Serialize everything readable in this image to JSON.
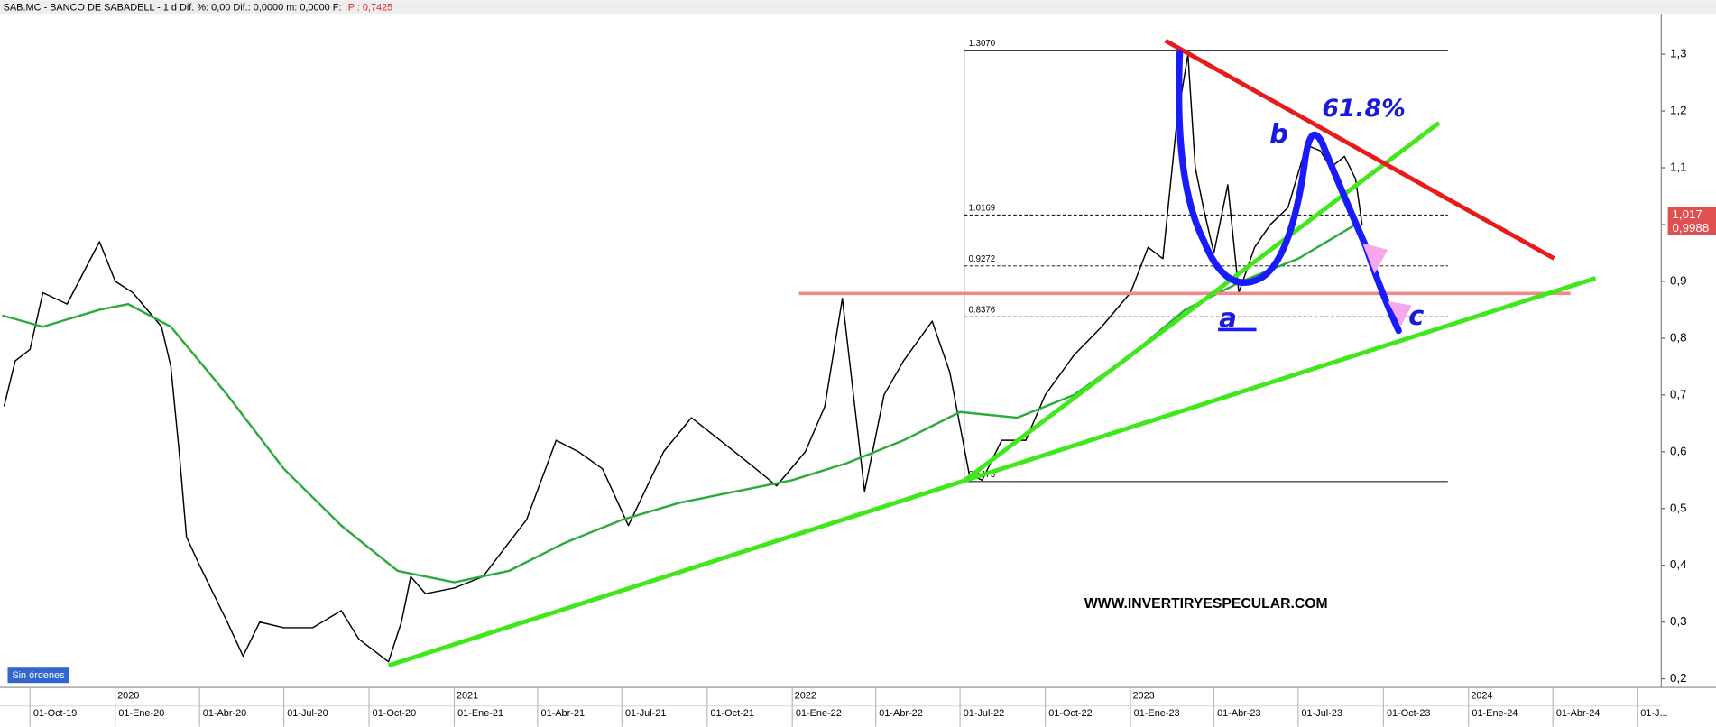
{
  "chart_data": {
    "type": "line",
    "title": "SAB.MC - BANCO DE SABADELL -  1 d  Dif. %: 0,00  Dif.: 0,0000  m: 0,0000  F:",
    "price_note": "P : 0,7425",
    "series": [
      {
        "color": "#000000",
        "x": [
          "2019-09-03",
          "2019-09-15",
          "2019-10-01",
          "2019-10-15",
          "2019-11-10",
          "2019-12-15",
          "2020-01-01",
          "2020-01-20",
          "2020-02-20",
          "2020-03-01",
          "2020-03-10",
          "2020-03-18",
          "2020-04-01",
          "2020-05-01",
          "2020-05-18",
          "2020-06-05",
          "2020-07-01",
          "2020-08-01",
          "2020-09-01",
          "2020-09-20",
          "2020-10-22",
          "2020-11-05",
          "2020-11-15",
          "2020-12-01",
          "2021-01-01",
          "2021-02-01",
          "2021-03-01",
          "2021-03-20",
          "2021-04-21",
          "2021-05-15",
          "2021-06-10",
          "2021-07-08",
          "2021-08-15",
          "2021-09-14",
          "2021-10-15",
          "2021-11-15",
          "2021-12-15",
          "2022-01-15",
          "2022-02-05",
          "2022-02-24",
          "2022-03-20",
          "2022-04-10",
          "2022-05-01",
          "2022-06-01",
          "2022-06-20",
          "2022-07-11",
          "2022-07-25",
          "2022-08-15",
          "2022-09-10",
          "2022-10-01",
          "2022-11-01",
          "2022-12-01",
          "2023-01-01",
          "2023-01-20",
          "2023-02-05",
          "2023-02-20",
          "2023-03-04",
          "2023-03-12",
          "2023-03-22",
          "2023-04-01",
          "2023-04-16",
          "2023-04-28",
          "2023-05-15",
          "2023-06-01",
          "2023-06-20",
          "2023-07-10",
          "2023-07-25",
          "2023-08-05",
          "2023-08-20",
          "2023-09-01",
          "2023-09-08"
        ],
        "values": [
          0.68,
          0.76,
          0.78,
          0.88,
          0.86,
          0.97,
          0.9,
          0.88,
          0.82,
          0.75,
          0.6,
          0.45,
          0.4,
          0.3,
          0.24,
          0.3,
          0.29,
          0.29,
          0.32,
          0.27,
          0.23,
          0.3,
          0.38,
          0.35,
          0.36,
          0.38,
          0.44,
          0.48,
          0.62,
          0.6,
          0.57,
          0.47,
          0.6,
          0.66,
          0.62,
          0.58,
          0.54,
          0.6,
          0.68,
          0.87,
          0.53,
          0.7,
          0.76,
          0.83,
          0.74,
          0.56,
          0.55,
          0.62,
          0.62,
          0.7,
          0.77,
          0.82,
          0.88,
          0.96,
          0.94,
          1.18,
          1.3,
          1.1,
          1.02,
          0.95,
          1.07,
          0.88,
          0.96,
          1.0,
          1.03,
          1.14,
          1.13,
          1.1,
          1.12,
          1.08,
          1.0
        ]
      },
      {
        "color": "#2eaa3c",
        "x": [
          "2019-09-01",
          "2019-10-15",
          "2019-12-15",
          "2020-01-15",
          "2020-03-01",
          "2020-05-01",
          "2020-07-01",
          "2020-09-01",
          "2020-11-01",
          "2021-01-01",
          "2021-03-01",
          "2021-05-01",
          "2021-07-01",
          "2021-09-01",
          "2021-11-01",
          "2022-01-01",
          "2022-03-01",
          "2022-05-01",
          "2022-07-01",
          "2022-09-01",
          "2022-11-01",
          "2023-01-01",
          "2023-03-01",
          "2023-05-01",
          "2023-07-01",
          "2023-09-01"
        ],
        "values": [
          0.84,
          0.82,
          0.85,
          0.86,
          0.82,
          0.7,
          0.57,
          0.47,
          0.39,
          0.37,
          0.39,
          0.44,
          0.48,
          0.51,
          0.53,
          0.55,
          0.58,
          0.62,
          0.67,
          0.66,
          0.7,
          0.77,
          0.85,
          0.9,
          0.94,
          1.0
        ]
      }
    ],
    "xlim": [
      "2019-09-01",
      "2024-07-27"
    ],
    "xticks": [
      {
        "value": "2019-10-01",
        "label": "01-Oct-19"
      },
      {
        "value": "2020-01-01",
        "label": "01-Ene-20"
      },
      {
        "value": "2020-04-01",
        "label": "01-Abr-20"
      },
      {
        "value": "2020-07-01",
        "label": "01-Jul-20"
      },
      {
        "value": "2020-10-01",
        "label": "01-Oct-20"
      },
      {
        "value": "2021-01-01",
        "label": "01-Ene-21"
      },
      {
        "value": "2021-04-01",
        "label": "01-Abr-21"
      },
      {
        "value": "2021-07-01",
        "label": "01-Jul-21"
      },
      {
        "value": "2021-10-01",
        "label": "01-Oct-21"
      },
      {
        "value": "2022-01-01",
        "label": "01-Ene-22"
      },
      {
        "value": "2022-04-01",
        "label": "01-Abr-22"
      },
      {
        "value": "2022-07-01",
        "label": "01-Jul-22"
      },
      {
        "value": "2022-10-01",
        "label": "01-Oct-22"
      },
      {
        "value": "2023-01-01",
        "label": "01-Ene-23"
      },
      {
        "value": "2023-04-01",
        "label": "01-Abr-23"
      },
      {
        "value": "2023-07-01",
        "label": "01-Jul-23"
      },
      {
        "value": "2023-10-01",
        "label": "01-Oct-23"
      },
      {
        "value": "2024-01-01",
        "label": "01-Ene-24"
      },
      {
        "value": "2024-04-01",
        "label": "01-Abr-24"
      },
      {
        "value": "2024-07-01",
        "label": "01-J..."
      }
    ],
    "year_ticks": [
      {
        "value": "2020-01-01",
        "label": "2020"
      },
      {
        "value": "2021-01-01",
        "label": "2021"
      },
      {
        "value": "2022-01-01",
        "label": "2022"
      },
      {
        "value": "2023-01-01",
        "label": "2023"
      },
      {
        "value": "2024-01-01",
        "label": "2024"
      }
    ],
    "ylim": [
      0.185,
      1.37
    ],
    "yticks": [
      {
        "value": 0.2,
        "label": "0,2"
      },
      {
        "value": 0.3,
        "label": "0,3"
      },
      {
        "value": 0.4,
        "label": "0,4"
      },
      {
        "value": 0.5,
        "label": "0,5"
      },
      {
        "value": 0.6,
        "label": "0,6"
      },
      {
        "value": 0.7,
        "label": "0,7"
      },
      {
        "value": 0.8,
        "label": "0,8"
      },
      {
        "value": 0.9,
        "label": "0,9"
      },
      {
        "value": 1.0,
        "label": "1"
      },
      {
        "value": 1.1,
        "label": "1,1"
      },
      {
        "value": 1.2,
        "label": "1,2"
      },
      {
        "value": 1.3,
        "label": "1,3"
      }
    ],
    "fib_levels": [
      {
        "value": 1.307,
        "label": "1.3070"
      },
      {
        "value": 1.0169,
        "label": "1.0169"
      },
      {
        "value": 0.9272,
        "label": "0.9272"
      },
      {
        "value": 0.8376,
        "label": "0.8376"
      },
      {
        "value": 0.5475,
        "label": "0.5475"
      }
    ],
    "price_tags": [
      {
        "value": 1.017,
        "label": "1,017"
      },
      {
        "value": 0.9988,
        "label": "0,9988"
      }
    ],
    "annotations": [
      "b",
      "61.8%",
      "a",
      "c"
    ],
    "watermark": "WWW.INVERTIRYESPECULAR.COM",
    "badge": "Sin órdenes"
  }
}
